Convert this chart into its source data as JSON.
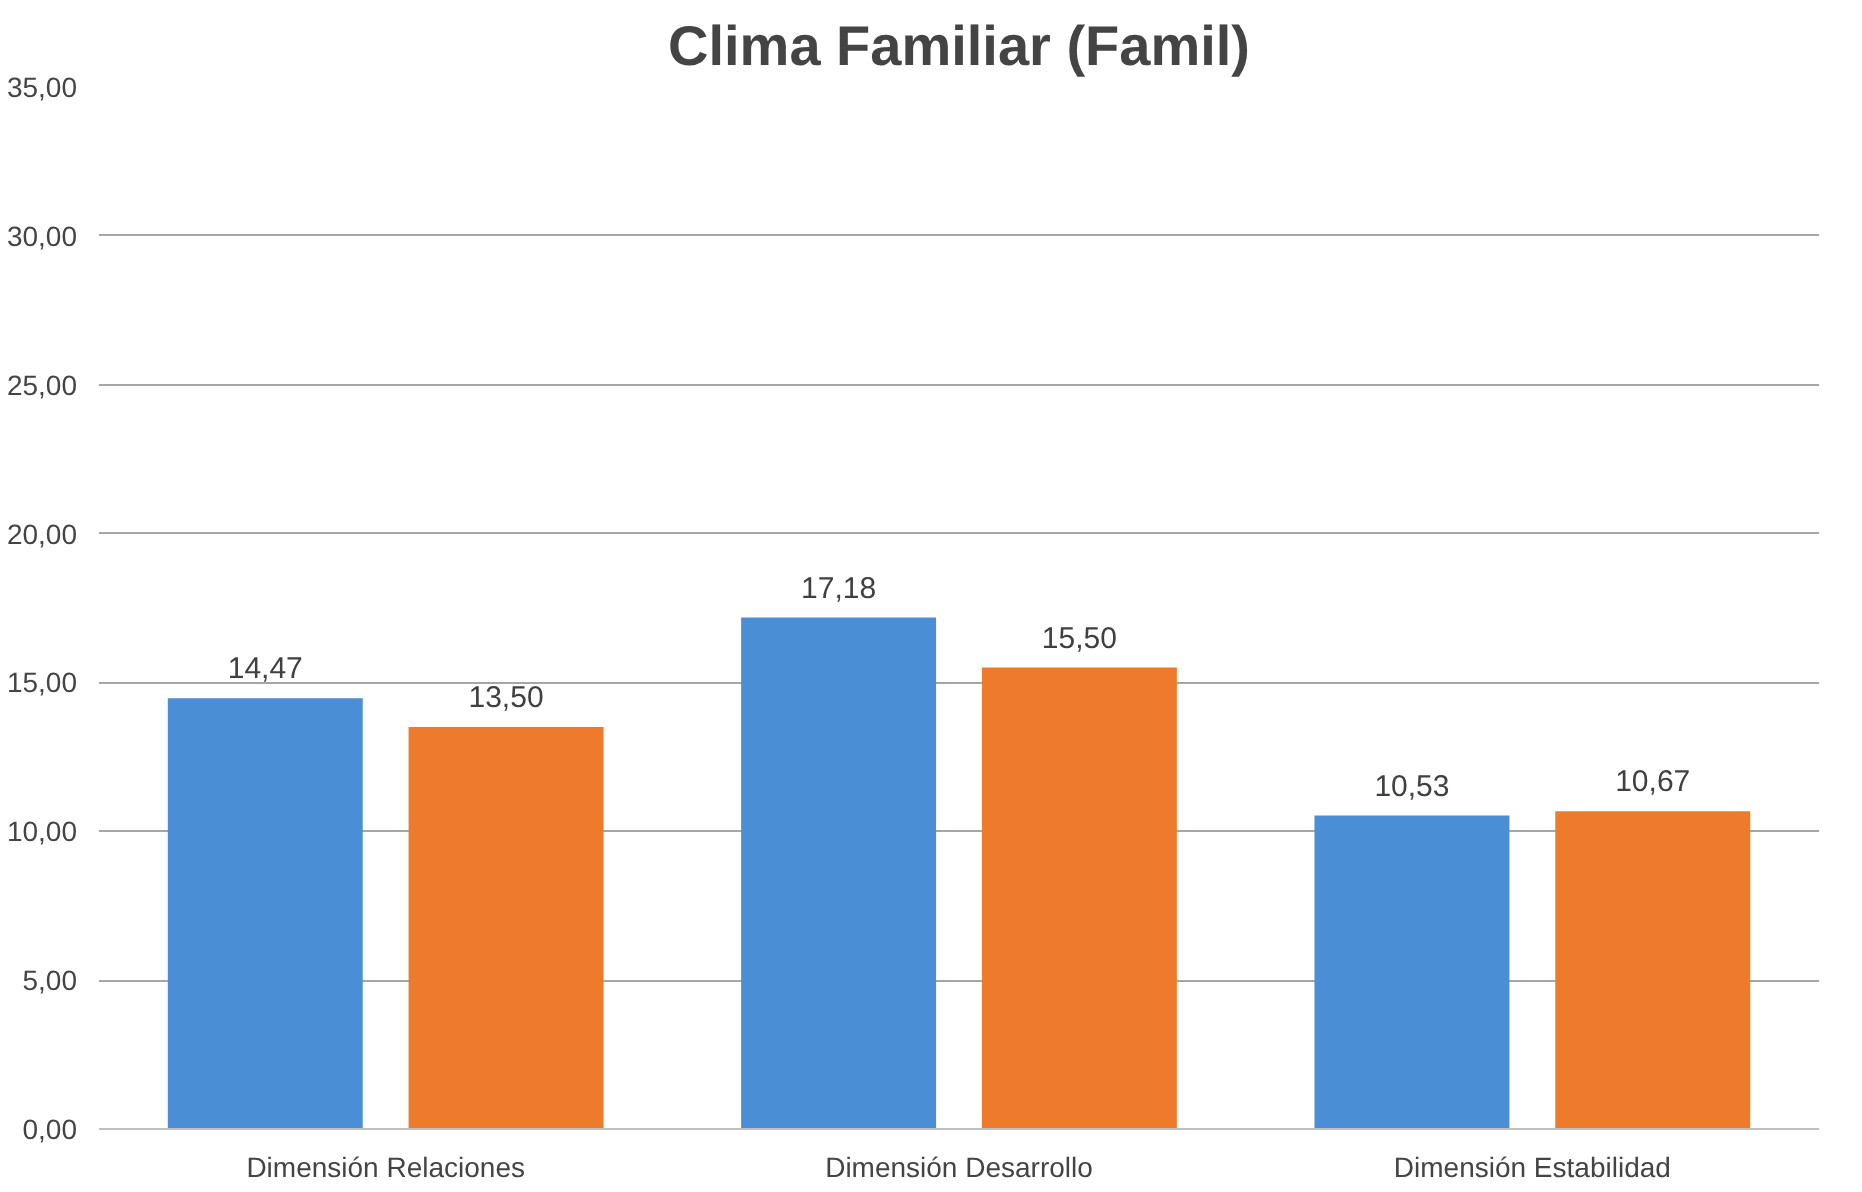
{
  "chart_data": {
    "type": "bar",
    "title": "Clima Familiar (Famil)",
    "categories": [
      "Dimensión Relaciones",
      "Dimensión Desarrollo",
      "Dimensión Estabilidad"
    ],
    "series": [
      {
        "color": "#4a8ed6",
        "values": [
          14.47,
          17.18,
          10.53
        ],
        "value_labels": [
          "14,47",
          "17,18",
          "10,53"
        ]
      },
      {
        "color": "#ee7b2c",
        "values": [
          13.5,
          15.5,
          10.67
        ],
        "value_labels": [
          "13,50",
          "15,50",
          "10,67"
        ]
      }
    ],
    "ylim": [
      0,
      35
    ],
    "yticks": [
      {
        "value": 0,
        "label": "0,00"
      },
      {
        "value": 5,
        "label": "5,00"
      },
      {
        "value": 10,
        "label": "10,00"
      },
      {
        "value": 15,
        "label": "15,00"
      },
      {
        "value": 20,
        "label": "20,00"
      },
      {
        "value": 25,
        "label": "25,00"
      },
      {
        "value": 30,
        "label": "30,00"
      },
      {
        "value": 35,
        "label": "35,00"
      }
    ],
    "grid": "y"
  }
}
